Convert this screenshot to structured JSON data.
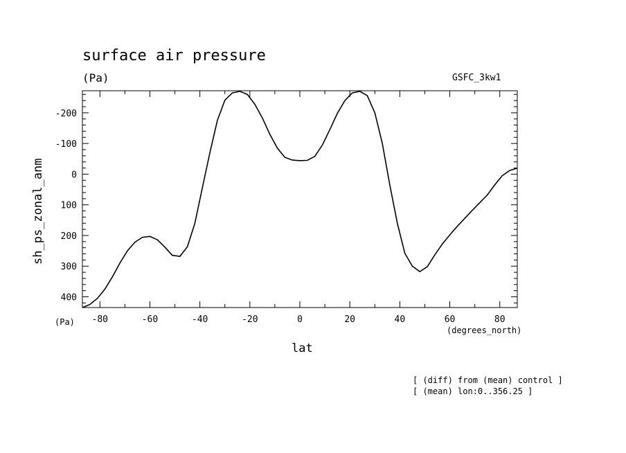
{
  "header": {
    "title": "surface air pressure",
    "units": "(Pa)",
    "model": "GSFC_3kw1"
  },
  "labels": {
    "y_units": "(Pa)",
    "x_units": "(degrees_north)"
  },
  "notes": [
    "[ (diff) from (mean) control ]",
    "[ (mean) lon:0..356.25 ]"
  ],
  "chart_data": {
    "type": "line",
    "title": "surface air pressure",
    "xlabel": "lat",
    "ylabel": "sh_ps_zonal_anm",
    "xlim": [
      -87,
      87
    ],
    "ylim": [
      435,
      -272
    ],
    "y_inverted": true,
    "grid": false,
    "xticks": [
      -80,
      -60,
      -40,
      -20,
      0,
      20,
      40,
      60,
      80
    ],
    "yticks": [
      400,
      300,
      200,
      100,
      0,
      -100,
      -200
    ],
    "series": [
      {
        "x": [
          -87,
          -84,
          -81,
          -78,
          -75,
          -72,
          -69,
          -66,
          -63,
          -60,
          -57,
          -54,
          -51,
          -48,
          -45,
          -42,
          -39,
          -36,
          -33,
          -30,
          -27,
          -24,
          -21,
          -18,
          -15,
          -12,
          -9,
          -6,
          -3,
          0,
          3,
          6,
          9,
          12,
          15,
          18,
          21,
          24,
          27,
          30,
          33,
          36,
          39,
          42,
          45,
          48,
          51,
          54,
          57,
          60,
          63,
          66,
          69,
          72,
          75,
          78,
          81,
          84,
          87
        ],
        "y": [
          435,
          425,
          405,
          375,
          335,
          290,
          250,
          222,
          206,
          203,
          214,
          238,
          265,
          268,
          237,
          160,
          45,
          -70,
          -175,
          -241,
          -265,
          -270,
          -260,
          -228,
          -183,
          -130,
          -85,
          -55,
          -46,
          -44,
          -45,
          -58,
          -95,
          -145,
          -198,
          -240,
          -265,
          -270,
          -256,
          -200,
          -100,
          35,
          160,
          258,
          300,
          318,
          302,
          263,
          228,
          198,
          170,
          144,
          118,
          93,
          68,
          35,
          5,
          -12,
          -20
        ],
        "color": "#000000"
      }
    ]
  }
}
